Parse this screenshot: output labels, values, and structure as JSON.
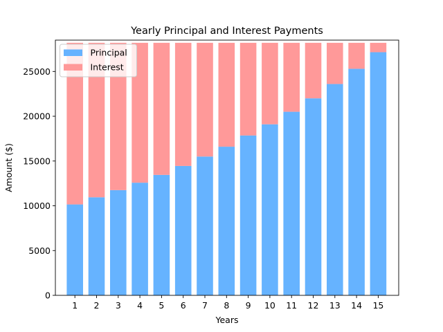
{
  "chart_data": {
    "type": "bar",
    "stacked": true,
    "title": "Yearly Principal and Interest Payments",
    "xlabel": "Years",
    "ylabel": "Amount ($)",
    "categories": [
      "1",
      "2",
      "3",
      "4",
      "5",
      "6",
      "7",
      "8",
      "9",
      "10",
      "11",
      "12",
      "13",
      "14",
      "15"
    ],
    "series": [
      {
        "name": "Principal",
        "color": "#66b3ff",
        "values": [
          10150,
          10950,
          11750,
          12580,
          13450,
          14450,
          15500,
          16600,
          17850,
          19100,
          20500,
          22000,
          23600,
          25300,
          27150
        ]
      },
      {
        "name": "Interest",
        "color": "#ff9999",
        "values": [
          18050,
          17250,
          16450,
          15620,
          14750,
          13750,
          12700,
          11600,
          10350,
          9100,
          7700,
          6200,
          4600,
          2900,
          1050
        ]
      }
    ],
    "ylim": [
      0,
      28500
    ],
    "yticks": [
      0,
      5000,
      10000,
      15000,
      20000,
      25000
    ],
    "legend": "top-left",
    "grid": false
  }
}
